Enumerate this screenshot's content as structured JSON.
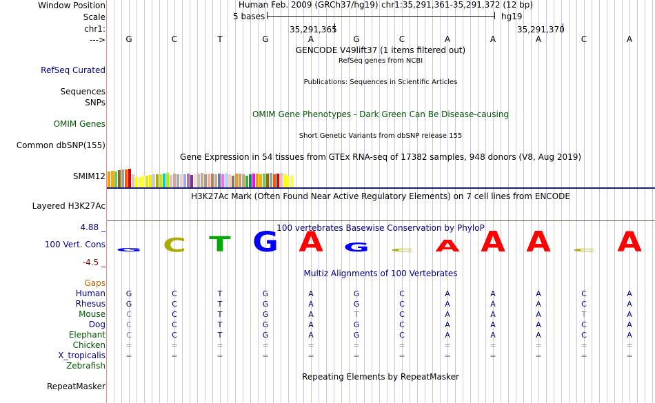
{
  "header": {
    "window_position_label": "Window Position",
    "scale_label": "Scale",
    "chrom_label": "chr1:",
    "strand_label": "--->",
    "assembly": "Human Feb. 2009 (GRCh37/hg19)",
    "position": "chr1:35,291,361-35,291,372 (12 bp)",
    "scale_text": "5 bases",
    "db": "hg19",
    "coord1": "35,291,365",
    "coord2": "35,291,370"
  },
  "sequence": [
    "G",
    "C",
    "T",
    "G",
    "A",
    "G",
    "C",
    "A",
    "A",
    "A",
    "C",
    "A"
  ],
  "tracks": {
    "gencode_title": "GENCODE V49lift37 (1 items filtered out)",
    "refseq_title": "RefSeq genes from NCBI",
    "refseq_label": "RefSeq Curated",
    "pubs_title": "Publications: Sequences in Scientific Articles",
    "sequences_label": "Sequences",
    "snps_label": "SNPs",
    "omim_title": "OMIM Gene Phenotypes - Dark Green Can Be Disease-causing",
    "omim_label": "OMIM Genes",
    "dbsnp_title": "Short Genetic Variants from dbSNP release 155",
    "dbsnp_label": "Common dbSNP(155)",
    "gtex_title": "Gene Expression in 54 tissues from GTEx RNA-seq of 17382 samples, 948 donors (V8, Aug 2019)",
    "gtex_label": "SMIM12",
    "h3k27_title": "H3K27Ac Mark (Often Found Near Active Regulatory Elements) on 7 cell lines from ENCODE",
    "h3k27_label": "Layered H3K27Ac",
    "cons_title": "100 vertebrates Basewise Conservation by PhyloP",
    "cons_label": "100 Vert. Cons",
    "cons_max": "4.88 _",
    "cons_min": "-4.5 _",
    "multiz_title": "Multiz Alignments of 100 Vertebrates",
    "gaps_label": "Gaps",
    "rmsk_title": "Repeating Elements by RepeatMasker",
    "rmsk_label": "RepeatMasker"
  },
  "gtex_heights": [
    0.65,
    0.67,
    0.64,
    0.7,
    0.72,
    0.72,
    0.74,
    0.54,
    0.42,
    0.42,
    0.46,
    0.46,
    0.5,
    0.52,
    0.54,
    0.52,
    0.56,
    0.58,
    0.5,
    0.56,
    0.52,
    0.54,
    0.54,
    0.56,
    0.5,
    0.56,
    0.56,
    0.58,
    0.52,
    0.56,
    0.56,
    0.54,
    0.56,
    0.54,
    0.56,
    0.54,
    0.48,
    0.56,
    0.56,
    0.54,
    0.46,
    0.52,
    0.56,
    0.56,
    0.54,
    0.56,
    0.56,
    0.58,
    0.54,
    0.56,
    0.58,
    0.52,
    0.44,
    0.48
  ],
  "colors": {
    "label_blue": "#000080",
    "label_green": "#005500",
    "label_orange": "#C06000",
    "cons_max": "#000080",
    "cons_min": "#800000",
    "grid": "#c8c8dc",
    "separator": "#1a1a6e",
    "gap_gray": "#888888",
    "gtex_palette": [
      "#FF9900",
      "#FFAA00",
      "#66CC66",
      "#996600",
      "#99A3A3",
      "#FF5500",
      "#DD0000",
      "#E8C0C0",
      "#FFFF00",
      "#FFFF33",
      "#FFFF44",
      "#DDDD33",
      "#EEEE00",
      "#CCCCCC",
      "#AAAA00",
      "#DDDD00",
      "#00CCCC",
      "#99FF00",
      "#EEBBCC",
      "#CCAA99",
      "#AAAAAA",
      "#EECCCC",
      "#99AAEE",
      "#AA7799",
      "#773399",
      "#EEDDCC",
      "#CCBBAA",
      "#BBAA99",
      "#AA9988",
      "#FFAA99",
      "#AA8866",
      "#CCAA88",
      "#6677AA",
      "#FF66FF",
      "#AADDFF",
      "#FFCCAA",
      "#887766",
      "#EE9933",
      "#CC9977",
      "#BBAA77",
      "#44AA44",
      "#008855",
      "#FF00FF"
    ]
  },
  "alignment": [
    {
      "species": "Human",
      "color": "#000080",
      "bases": [
        "G",
        "C",
        "T",
        "G",
        "A",
        "G",
        "C",
        "A",
        "A",
        "A",
        "C",
        "A"
      ]
    },
    {
      "species": "Rhesus",
      "color": "#000080",
      "bases": [
        "G",
        "C",
        "T",
        "G",
        "A",
        "G",
        "C",
        "A",
        "A",
        "A",
        "C",
        "A"
      ]
    },
    {
      "species": "Mouse",
      "color": "#005500",
      "bases": [
        "C",
        "C",
        "T",
        "G",
        "A",
        "T",
        "C",
        "A",
        "A",
        "A",
        "T",
        "A"
      ]
    },
    {
      "species": "Dog",
      "color": "#000080",
      "bases": [
        "C",
        "C",
        "T",
        "G",
        "A",
        "G",
        "C",
        "A",
        "A",
        "A",
        "C",
        "A"
      ]
    },
    {
      "species": "Elephant",
      "color": "#005500",
      "bases": [
        "C",
        "C",
        "T",
        "G",
        "A",
        "G",
        "C",
        "A",
        "A",
        "A",
        "C",
        "A"
      ]
    },
    {
      "species": "Chicken",
      "color": "#005500",
      "bases": [
        "=",
        "=",
        "=",
        "=",
        "=",
        "=",
        "=",
        "=",
        "=",
        "=",
        "=",
        "="
      ]
    },
    {
      "species": "X_tropicalis",
      "color": "#000080",
      "bases": [
        "=",
        "=",
        "=",
        "=",
        "=",
        "=",
        "=",
        "=",
        "=",
        "=",
        "=",
        "="
      ]
    },
    {
      "species": "Zebrafish",
      "color": "#005500",
      "bases": []
    }
  ],
  "logo_scores": [
    0.12,
    0.5,
    0.55,
    0.72,
    0.72,
    0.32,
    0.1,
    0.42,
    0.75,
    0.75,
    0.1,
    0.72
  ]
}
